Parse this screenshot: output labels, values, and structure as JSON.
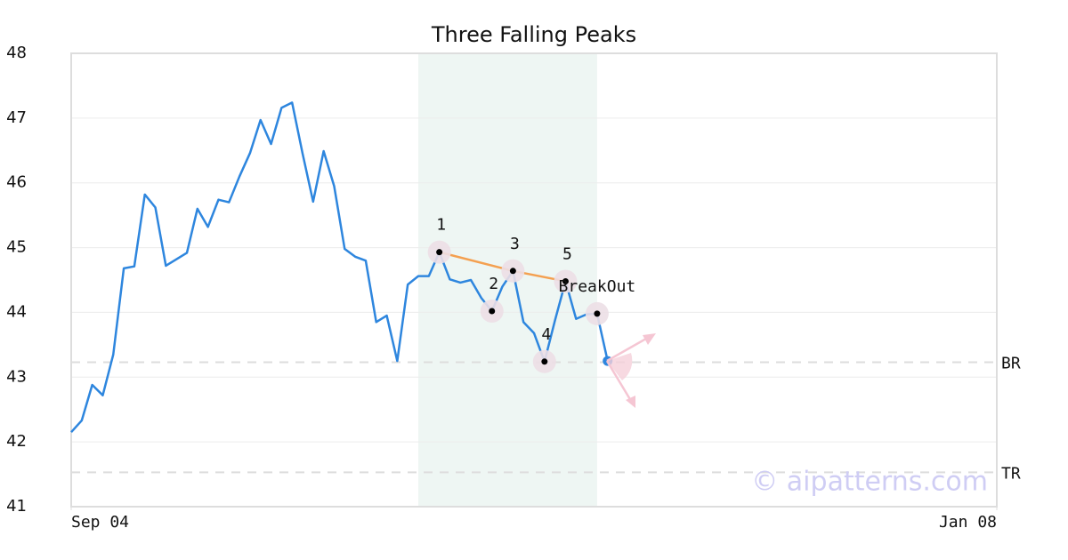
{
  "chart_data": {
    "type": "line",
    "title": "Three Falling Peaks",
    "x": [
      0,
      1,
      2,
      3,
      4,
      5,
      6,
      7,
      8,
      9,
      10,
      11,
      12,
      13,
      14,
      15,
      16,
      17,
      18,
      19,
      20,
      21,
      22,
      23,
      24,
      25,
      26,
      27,
      28,
      29,
      30,
      31,
      32,
      33,
      34,
      35,
      36,
      37,
      38,
      39,
      40,
      41,
      42,
      43,
      44,
      45,
      46,
      47,
      48,
      49,
      50,
      51
    ],
    "values": [
      42.15,
      42.33,
      42.88,
      42.72,
      43.35,
      44.68,
      44.71,
      45.82,
      45.62,
      44.72,
      44.82,
      44.92,
      45.6,
      45.32,
      45.74,
      45.7,
      46.1,
      46.46,
      46.97,
      46.6,
      47.16,
      47.24,
      46.45,
      45.71,
      46.49,
      45.95,
      44.98,
      44.86,
      44.8,
      43.85,
      43.95,
      43.25,
      44.43,
      44.56,
      44.56,
      44.93,
      44.51,
      44.46,
      44.5,
      44.22,
      44.02,
      44.4,
      44.64,
      43.85,
      43.68,
      43.24,
      43.88,
      44.48,
      43.9,
      43.97,
      43.98,
      43.25
    ],
    "color": "#2e86de",
    "xlim": [
      0,
      88
    ],
    "xticks": [
      {
        "value": 0,
        "label": "Sep 04"
      },
      {
        "value": 88,
        "label": "Jan 08"
      }
    ],
    "ylim": [
      41,
      48
    ],
    "yticks": [
      41,
      42,
      43,
      44,
      45,
      46,
      47,
      48
    ],
    "grid": true,
    "highlight_range": [
      33,
      50
    ],
    "reference_lines": [
      {
        "value": 43.23,
        "label": "BR"
      },
      {
        "value": 41.53,
        "label": "TR"
      }
    ],
    "pattern_points": [
      {
        "index": 35,
        "label": "1"
      },
      {
        "index": 40,
        "label": "2"
      },
      {
        "index": 42,
        "label": "3"
      },
      {
        "index": 45,
        "label": "4"
      },
      {
        "index": 47,
        "label": "5"
      }
    ],
    "trend_color": "#f4a050",
    "breakout": {
      "index": 50,
      "label": "BreakOut"
    },
    "signal_index": 51,
    "watermark": "© aipatterns.com"
  }
}
